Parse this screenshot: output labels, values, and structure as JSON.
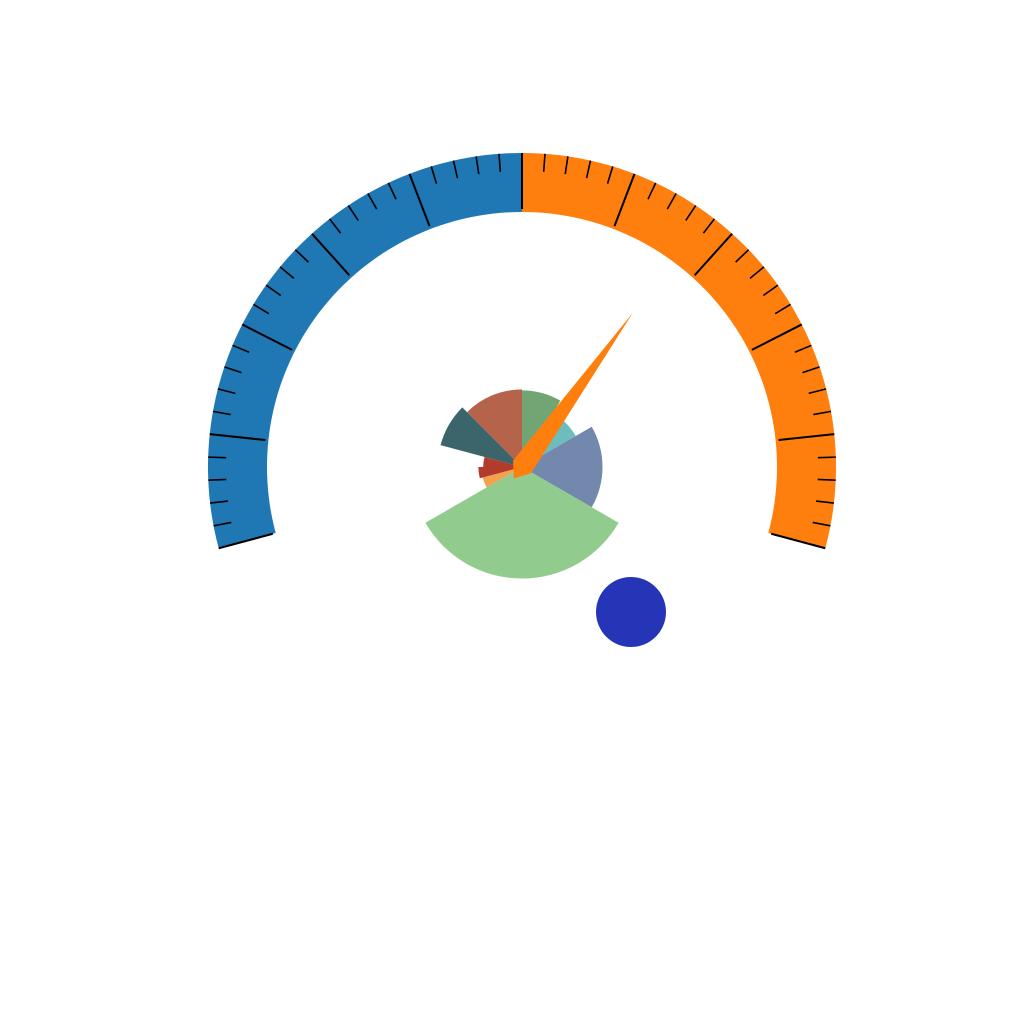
{
  "chart_data": {
    "type": "gauge",
    "title": "",
    "gauge": {
      "min": 0,
      "max": 100,
      "start_angle_deg": -105,
      "end_angle_deg": 105,
      "major_step": 10,
      "minor_per_major": 5,
      "bands": [
        {
          "from": 0,
          "to": 50,
          "color": "#1f77b4"
        },
        {
          "from": 50,
          "to": 100,
          "color": "#ff7f0e"
        }
      ],
      "needle": {
        "value": 67,
        "color": "#ff7f0e"
      }
    },
    "polar_bar": {
      "type": "polar-bar",
      "sectors": [
        {
          "start_deg": 0,
          "end_deg": 30,
          "value": 79,
          "color": "#72a573"
        },
        {
          "start_deg": 30,
          "end_deg": 60,
          "value": 64,
          "color": "#6ebcbc"
        },
        {
          "start_deg": 60,
          "end_deg": 120,
          "value": 83,
          "color": "#7289ad"
        },
        {
          "start_deg": 120,
          "end_deg": 240,
          "value": 115,
          "color": "#92cb8e"
        },
        {
          "start_deg": 240,
          "end_deg": 255,
          "value": 42,
          "color": "#f4a04d"
        },
        {
          "start_deg": 255,
          "end_deg": 270,
          "value": 45,
          "color": "#b23b2c"
        },
        {
          "start_deg": 270,
          "end_deg": 285,
          "value": 40,
          "color": "#b23b2c"
        },
        {
          "start_deg": 285,
          "end_deg": 315,
          "value": 87,
          "color": "#3b656b"
        },
        {
          "start_deg": 315,
          "end_deg": 360,
          "value": 80,
          "color": "#b5634a"
        }
      ]
    },
    "marker": {
      "color": "#2634b8"
    }
  }
}
